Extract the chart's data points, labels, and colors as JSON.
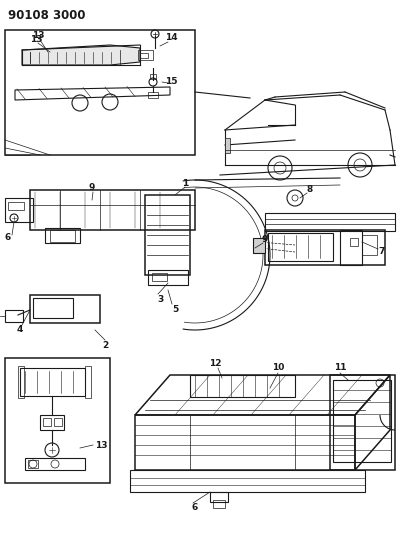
{
  "title": "90108 3000",
  "bg_color": "#ffffff",
  "line_color": "#1a1a1a",
  "fig_width": 4.01,
  "fig_height": 5.33,
  "dpi": 100,
  "title_fontsize": 8.5,
  "title_fontweight": "bold"
}
